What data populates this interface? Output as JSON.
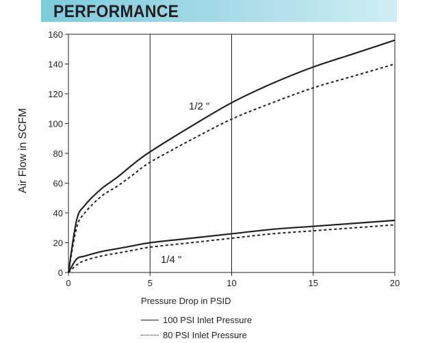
{
  "header": {
    "title": "PERFORMANCE"
  },
  "colors": {
    "banner": "#7ccbdc",
    "line": "#231f20"
  },
  "legend": {
    "items": [
      {
        "label": "100 PSI Inlet Pressure",
        "style": "solid"
      },
      {
        "label": "80 PSI Inlet Pressure",
        "style": "dotted"
      }
    ]
  },
  "chart_data": {
    "type": "line",
    "title": "",
    "xlabel": "Pressure Drop in PSID",
    "ylabel": "Air Flow in SCFM",
    "xlim": [
      0,
      20
    ],
    "ylim": [
      0,
      160
    ],
    "xticks": [
      0,
      5,
      10,
      15,
      20
    ],
    "yticks": [
      0,
      20,
      40,
      60,
      80,
      100,
      120,
      140,
      160
    ],
    "grid": true,
    "x": [
      0,
      0.5,
      1,
      2,
      3,
      4,
      5,
      7.5,
      10,
      12.5,
      15,
      17.5,
      20
    ],
    "series_labels": [
      "1/2 \"",
      "1/4 \""
    ],
    "series": [
      {
        "size": "1/2 \"",
        "pressure": "100 PSI Inlet Pressure",
        "style": "solid",
        "values": [
          0,
          35,
          45,
          56,
          64,
          73,
          81,
          98,
          114,
          127,
          138,
          147,
          156
        ]
      },
      {
        "size": "1/2 \"",
        "pressure": "80 PSI Inlet Pressure",
        "style": "dotted",
        "values": [
          0,
          30,
          40,
          51,
          58,
          66,
          74,
          89,
          103,
          114,
          124,
          132,
          140
        ]
      },
      {
        "size": "1/4 \"",
        "pressure": "100 PSI Inlet Pressure",
        "style": "solid",
        "values": [
          0,
          9,
          11,
          14,
          16,
          18,
          20,
          23,
          26,
          29,
          31,
          33,
          35
        ]
      },
      {
        "size": "1/4 \"",
        "pressure": "80 PSI Inlet Pressure",
        "style": "dotted",
        "values": [
          0,
          5,
          8,
          11,
          13,
          15,
          17,
          20,
          23,
          26,
          28,
          30,
          32
        ]
      }
    ]
  }
}
